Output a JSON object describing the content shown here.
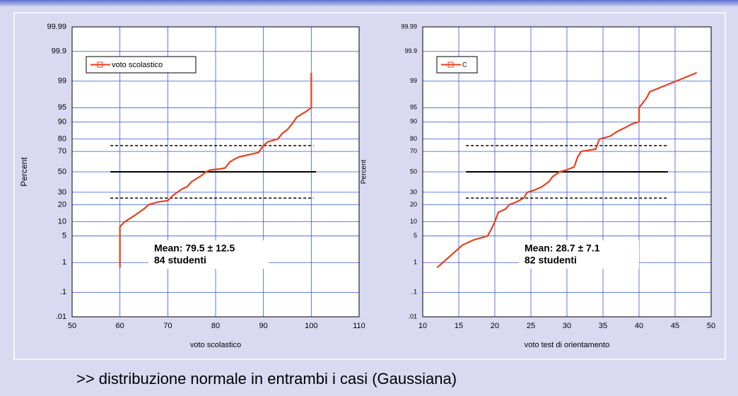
{
  "chart_data": [
    {
      "type": "probability",
      "xlabel": "voto scolastico",
      "ylabel": "Percent",
      "xlim": [
        50,
        110
      ],
      "xticks": [
        50,
        60,
        70,
        80,
        90,
        100,
        110
      ],
      "ylim": [
        0.01,
        99.99
      ],
      "yticks": [
        {
          "value": 0.01,
          "label": ".01"
        },
        {
          "value": 0.1,
          "label": ".1"
        },
        1,
        5,
        10,
        20,
        30,
        50,
        70,
        80,
        90,
        95,
        99,
        99.9,
        99.99
      ],
      "grid": true,
      "legend": "upper left",
      "series": [
        {
          "name": "voto scolastico",
          "color": "#e8401c",
          "x": [
            60,
            60,
            61,
            63,
            64,
            65,
            66,
            68,
            70,
            71,
            72,
            73,
            74,
            75,
            76,
            77,
            78,
            79,
            81,
            82,
            83,
            84,
            85,
            87,
            89,
            90,
            91,
            93,
            94,
            95,
            96,
            97,
            99,
            100,
            100
          ],
          "values": [
            0.7,
            8,
            10,
            13,
            15,
            17,
            20,
            22,
            23,
            27,
            30,
            33,
            35,
            40,
            43,
            46,
            50,
            52,
            53,
            54,
            60,
            63,
            65,
            67,
            69,
            75,
            78,
            80,
            84,
            86,
            89,
            92,
            94,
            95,
            99.45
          ]
        }
      ],
      "reference_lines": [
        {
          "y": 25,
          "x": [
            58,
            100.5
          ],
          "style": "dashed"
        },
        {
          "y": 50,
          "x": [
            58,
            101
          ],
          "style": "solid"
        },
        {
          "y": 75,
          "x": [
            58,
            100.5
          ],
          "style": "dashed"
        }
      ],
      "annotations": [
        "Mean:  79.5 ± 12.5",
        "84 studenti"
      ]
    },
    {
      "type": "probability",
      "xlabel": "voto test di orientamento",
      "ylabel": "Percent",
      "xlim": [
        10,
        50
      ],
      "xticks": [
        10,
        15,
        20,
        25,
        30,
        35,
        40,
        45,
        50
      ],
      "ylim": [
        0.01,
        99.99
      ],
      "yticks": [
        {
          "value": 0.01,
          "label": ".01"
        },
        {
          "value": 0.1,
          "label": ".1"
        },
        1,
        5,
        10,
        20,
        30,
        50,
        70,
        80,
        90,
        95,
        99,
        99.9,
        99.99
      ],
      "grid": true,
      "legend": "upper left",
      "series": [
        {
          "name": "C",
          "color": "#e8401c",
          "x": [
            12,
            15.5,
            17,
            19,
            19.5,
            20,
            20.5,
            21.5,
            22,
            23,
            24,
            24.5,
            25.5,
            26.5,
            27.5,
            28,
            29,
            30,
            31,
            31.5,
            32,
            34,
            34.5,
            36,
            37,
            38,
            39,
            40,
            40,
            41,
            41.5,
            48
          ],
          "values": [
            0.7,
            3,
            4,
            5,
            7,
            10,
            15,
            17,
            20,
            22,
            25,
            30,
            32,
            35,
            40,
            45,
            50,
            52,
            55,
            65,
            70,
            72,
            80,
            82,
            85,
            87,
            89,
            90,
            95,
            97,
            98,
            99.45
          ]
        }
      ],
      "reference_lines": [
        {
          "y": 25,
          "x": [
            16,
            44
          ],
          "style": "dashed"
        },
        {
          "y": 50,
          "x": [
            16,
            44
          ],
          "style": "solid"
        },
        {
          "y": 75,
          "x": [
            16,
            44
          ],
          "style": "dashed"
        }
      ],
      "annotations": [
        "Mean:  28.7 ± 7.1",
        "82 studenti"
      ]
    }
  ],
  "footer": ">>  distribuzione normale in entrambi i casi (Gaussiana)"
}
